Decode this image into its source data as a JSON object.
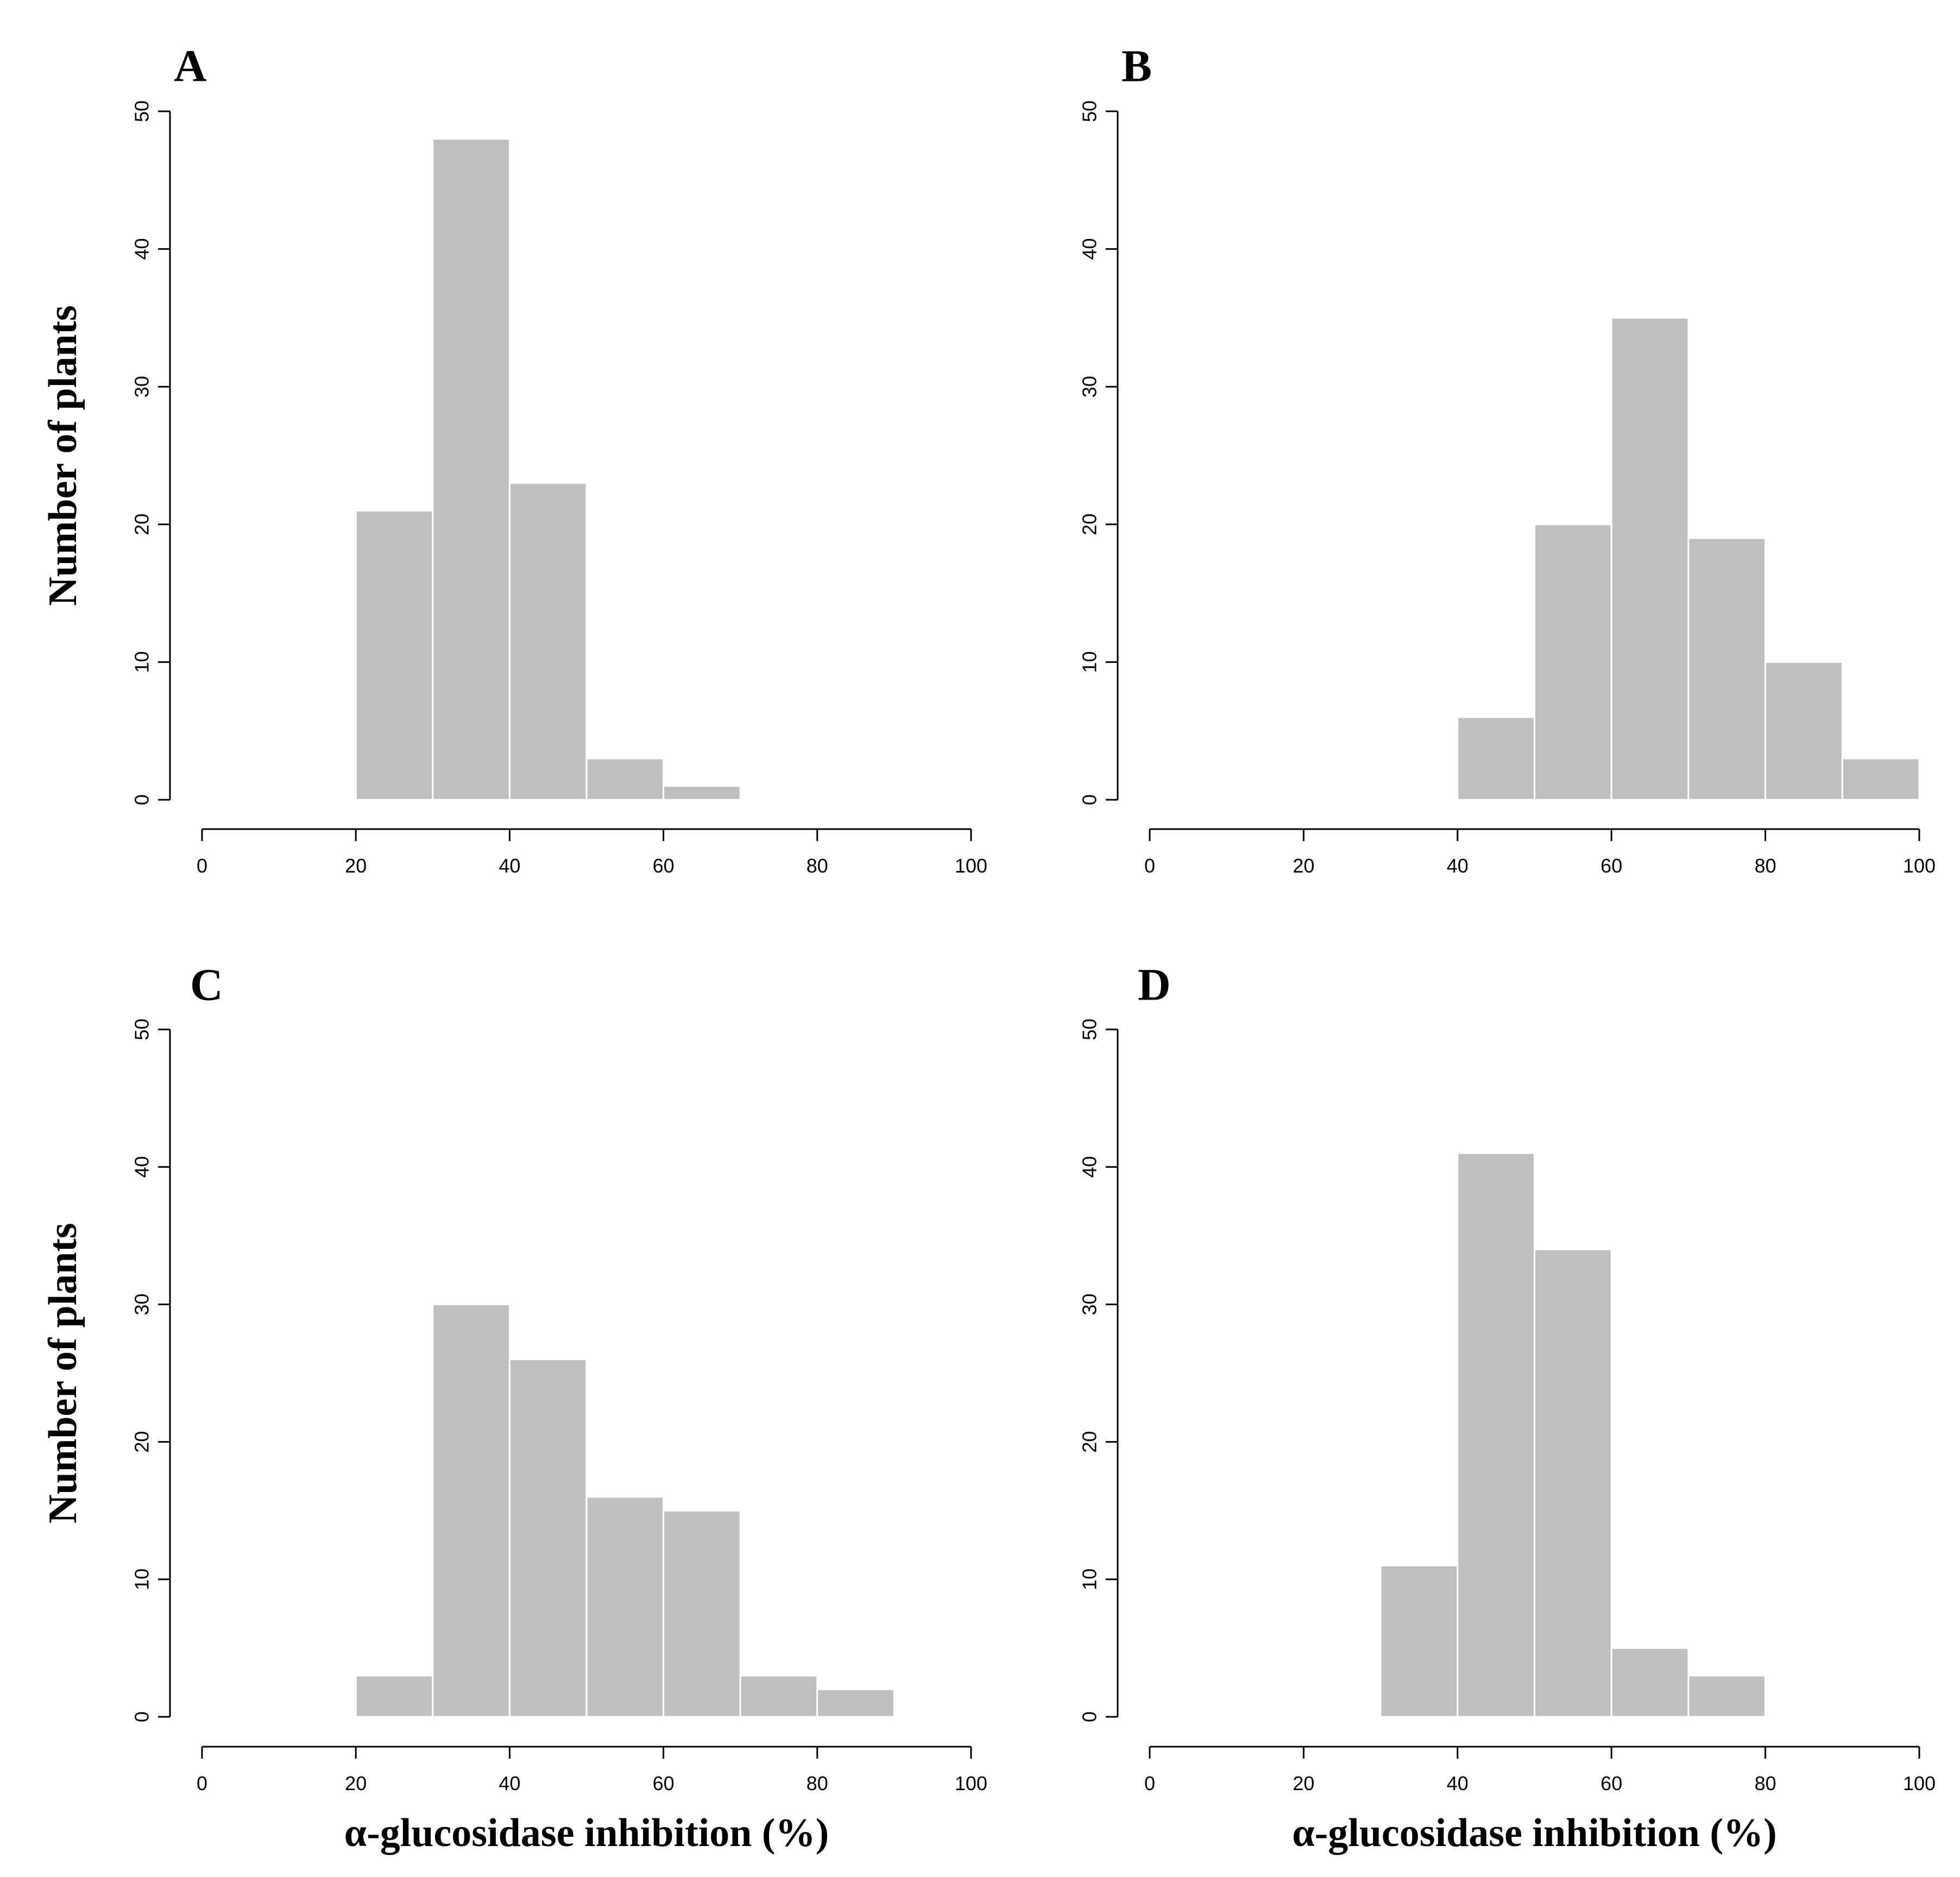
{
  "chart_data": [
    {
      "type": "histogram",
      "panel": "A",
      "bin_edges": [
        20,
        30,
        40,
        50,
        60,
        70
      ],
      "values": [
        21,
        48,
        23,
        3,
        1
      ],
      "xlim": [
        0,
        100
      ],
      "ylim": [
        0,
        50
      ],
      "xticks": [
        "0",
        "20",
        "40",
        "60",
        "80",
        "100"
      ],
      "yticks": [
        "0",
        "10",
        "20",
        "30",
        "40",
        "50"
      ],
      "xlabel": "",
      "ylabel": "Number of plants"
    },
    {
      "type": "histogram",
      "panel": "B",
      "bin_edges": [
        40,
        50,
        60,
        70,
        80,
        90,
        100
      ],
      "values": [
        6,
        20,
        35,
        19,
        10,
        3
      ],
      "xlim": [
        0,
        100
      ],
      "ylim": [
        0,
        50
      ],
      "xticks": [
        "0",
        "20",
        "40",
        "60",
        "80",
        "100"
      ],
      "yticks": [
        "0",
        "10",
        "20",
        "30",
        "40",
        "50"
      ],
      "xlabel": "",
      "ylabel": ""
    },
    {
      "type": "histogram",
      "panel": "C",
      "bin_edges": [
        20,
        30,
        40,
        50,
        60,
        70,
        80,
        90
      ],
      "values": [
        3,
        30,
        26,
        16,
        15,
        3,
        2
      ],
      "xlim": [
        0,
        100
      ],
      "ylim": [
        0,
        50
      ],
      "xticks": [
        "0",
        "20",
        "40",
        "60",
        "80",
        "100"
      ],
      "yticks": [
        "0",
        "10",
        "20",
        "30",
        "40",
        "50"
      ],
      "xlabel": "α-glucosidase inhibition (%)",
      "ylabel": "Number of plants"
    },
    {
      "type": "histogram",
      "panel": "D",
      "bin_edges": [
        30,
        40,
        50,
        60,
        70,
        80
      ],
      "values": [
        11,
        41,
        34,
        5,
        3
      ],
      "xlim": [
        0,
        100
      ],
      "ylim": [
        0,
        50
      ],
      "xticks": [
        "0",
        "20",
        "40",
        "60",
        "80",
        "100"
      ],
      "yticks": [
        "0",
        "10",
        "20",
        "30",
        "40",
        "50"
      ],
      "xlabel": "α-glucosidase inhibition (%)",
      "ylabel": ""
    }
  ]
}
